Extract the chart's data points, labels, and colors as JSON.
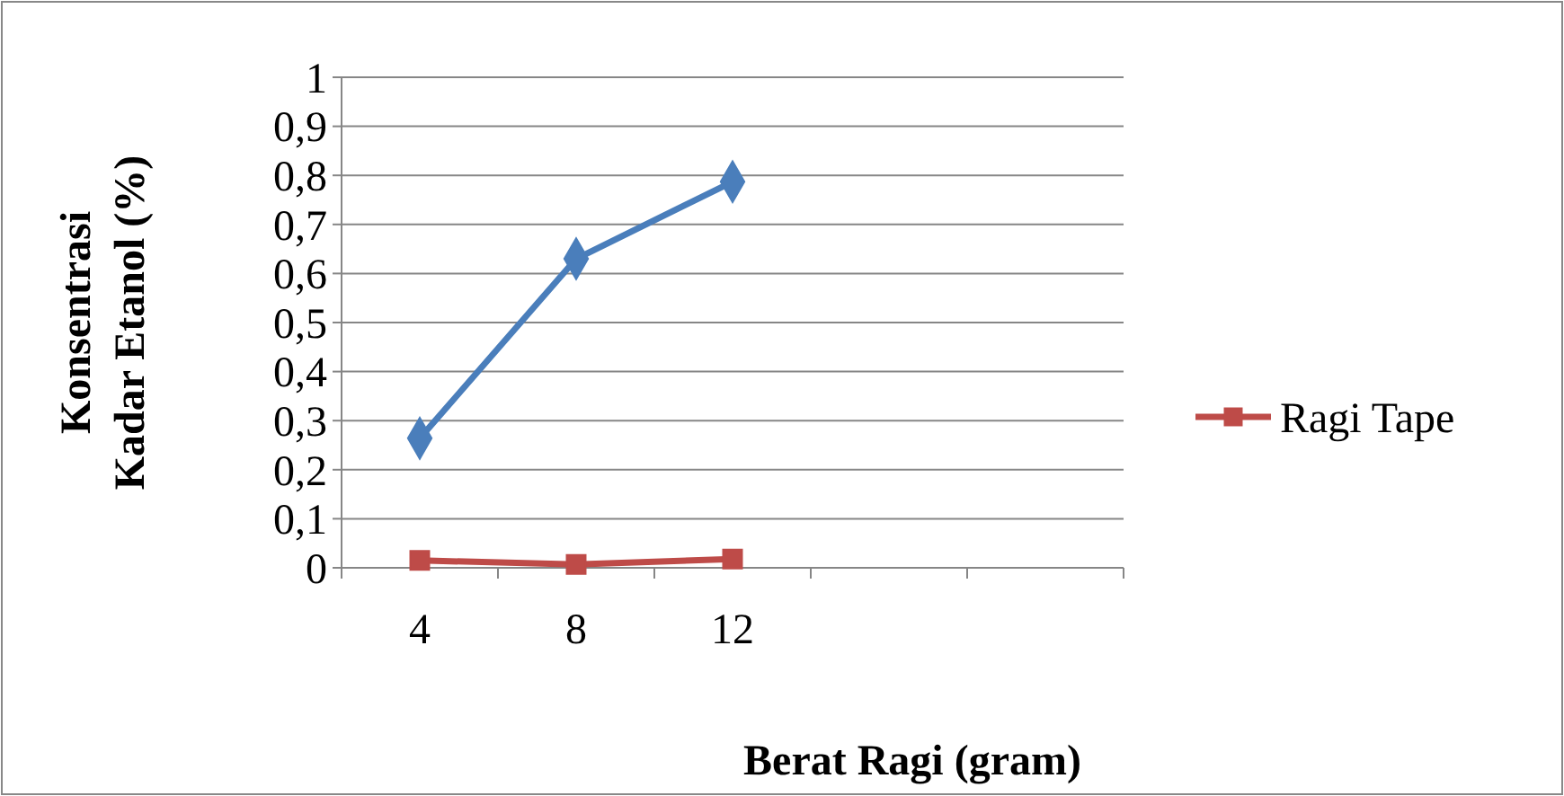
{
  "chart_data": {
    "type": "line",
    "xlabel": "Berat Ragi (gram)",
    "ylabel": "Konsentrasi Kadar Etanol (%)",
    "categories": [
      "4",
      "8",
      "12",
      null,
      null
    ],
    "series": [
      {
        "color": "#4a7ebb",
        "marker": "diamond",
        "values": [
          0.264,
          0.63,
          0.787,
          null,
          null
        ]
      },
      {
        "name": "Ragi Tape",
        "color": "#be4b48",
        "marker": "square",
        "values": [
          0.015,
          0.007,
          0.018,
          null,
          null
        ]
      }
    ],
    "ylim": [
      0,
      1
    ],
    "yticks": [
      0,
      {
        "value": 0.1,
        "label": "0,1"
      },
      {
        "value": 0.2,
        "label": "0,2"
      },
      {
        "value": 0.3,
        "label": "0,3"
      },
      {
        "value": 0.4,
        "label": "0,4"
      },
      {
        "value": 0.5,
        "label": "0,5"
      },
      {
        "value": 0.6,
        "label": "0,6"
      },
      {
        "value": 0.7,
        "label": "0,7"
      },
      {
        "value": 0.8,
        "label": "0,8"
      },
      {
        "value": 0.9,
        "label": "0,9"
      },
      1
    ],
    "grid": "y",
    "legend": "right"
  }
}
